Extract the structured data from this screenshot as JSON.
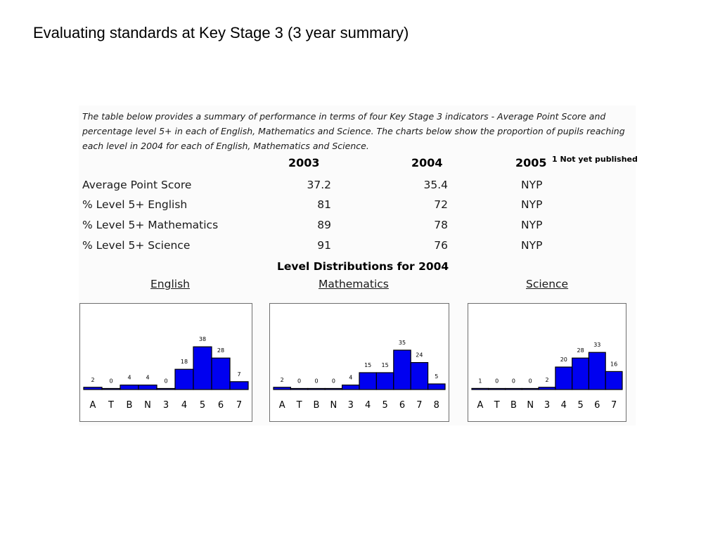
{
  "slide_title": "Evaluating standards at Key Stage 3 (3 year summary)",
  "intro_lines": [
    "The table below provides a summary of performance in terms of four Key Stage 3 indicators - Average Point Score and",
    "percentage level 5+ in each of English, Mathematics and Science.  The charts below show the proportion of pupils reaching",
    "each level in 2004 for each of English, Mathematics and Science."
  ],
  "table": {
    "years": [
      "2003",
      "2004",
      "2005"
    ],
    "footnote": "1 Not yet published",
    "rows": [
      {
        "label": "Average Point Score",
        "v2003": "37.2",
        "v2004": "35.4",
        "v2005": "NYP"
      },
      {
        "label": "% Level 5+ English",
        "v2003": "81",
        "v2004": "72",
        "v2005": "NYP"
      },
      {
        "label": "% Level 5+ Mathematics",
        "v2003": "89",
        "v2004": "78",
        "v2005": "NYP"
      },
      {
        "label": "% Level 5+ Science",
        "v2003": "91",
        "v2004": "76",
        "v2005": "NYP"
      }
    ]
  },
  "distribution_heading": "Level Distributions for 2004",
  "chart_data": [
    {
      "type": "bar",
      "title": "English",
      "categories": [
        "A",
        "T",
        "B",
        "N",
        "3",
        "4",
        "5",
        "6",
        "7"
      ],
      "values": [
        2,
        0,
        4,
        4,
        0,
        18,
        38,
        28,
        7
      ],
      "data_labels": [
        "2",
        "0",
        "4",
        "4",
        "0",
        "18",
        "38",
        "28",
        "7"
      ],
      "ylim": [
        0,
        40
      ],
      "bar_color": "#0000f0"
    },
    {
      "type": "bar",
      "title": "Mathematics",
      "categories": [
        "A",
        "T",
        "B",
        "N",
        "3",
        "4",
        "5",
        "6",
        "7",
        "8"
      ],
      "values": [
        2,
        0,
        0,
        0,
        4,
        15,
        15,
        35,
        24,
        5
      ],
      "data_labels": [
        "2",
        "0",
        "0",
        "0",
        "4",
        "15",
        "15",
        "35",
        "24",
        "5"
      ],
      "ylim": [
        0,
        40
      ],
      "bar_color": "#0000f0"
    },
    {
      "type": "bar",
      "title": "Science",
      "categories": [
        "A",
        "T",
        "B",
        "N",
        "3",
        "4",
        "5",
        "6",
        "7"
      ],
      "values": [
        1,
        0,
        0,
        0,
        2,
        20,
        28,
        33,
        16
      ],
      "data_labels": [
        "1",
        "0",
        "0",
        "0",
        "2",
        "20",
        "28",
        "33",
        "16"
      ],
      "ylim": [
        0,
        40
      ],
      "bar_color": "#0000f0"
    }
  ]
}
